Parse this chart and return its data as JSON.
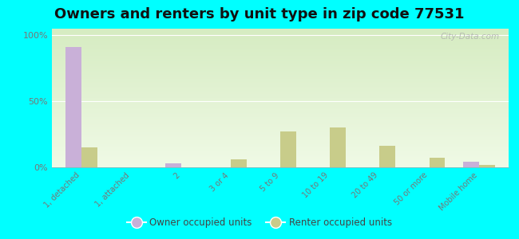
{
  "title": "Owners and renters by unit type in zip code 77531",
  "categories": [
    "1, detached",
    "1, attached",
    "2",
    "3 or 4",
    "5 to 9",
    "10 to 19",
    "20 to 49",
    "50 or more",
    "Mobile home"
  ],
  "owner_values": [
    91,
    0,
    3,
    0,
    0,
    0,
    0,
    0,
    4
  ],
  "renter_values": [
    15,
    0,
    0,
    6,
    27,
    30,
    16,
    7,
    2
  ],
  "owner_color": "#c9b0d8",
  "renter_color": "#c8cc8a",
  "bg_color_top": "#d6ecc2",
  "bg_color_bottom": "#f0fae6",
  "outer_bg": "#00ffff",
  "ylabel_ticks": [
    "0%",
    "50%",
    "100%"
  ],
  "ytick_vals": [
    0,
    50,
    100
  ],
  "ylim": [
    0,
    105
  ],
  "legend_owner": "Owner occupied units",
  "legend_renter": "Renter occupied units",
  "watermark": "City-Data.com",
  "title_fontsize": 13,
  "bar_width": 0.32,
  "tick_label_color": "#777777"
}
